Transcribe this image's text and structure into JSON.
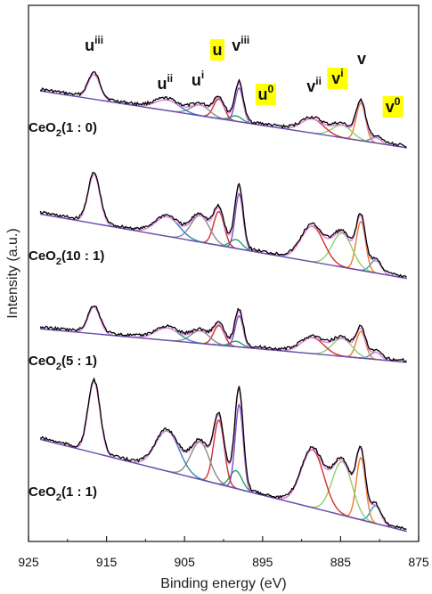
{
  "chart_data": {
    "type": "line",
    "xlabel": "Binding energy (eV)",
    "ylabel": "Intensity (a.u.)",
    "xlim": [
      925,
      875
    ],
    "x_ticks": [
      "925",
      "915",
      "905",
      "895",
      "885",
      "875"
    ],
    "x_tick_values": [
      925,
      915,
      905,
      895,
      885,
      875
    ],
    "yticks_shown": false,
    "colors": {
      "experimental": "#000000",
      "envelope": "#e58de0",
      "background": "#6a4fb0",
      "highlight": "#ffff00"
    },
    "components": [
      {
        "name": "v0",
        "color": "#1f9fd9",
        "center": 880.5,
        "fwhm": 1.6
      },
      {
        "name": "v",
        "color": "#f07c2e",
        "center": 882.4,
        "fwhm": 1.4
      },
      {
        "name": "vi",
        "color": "#8cd16a",
        "center": 884.8,
        "fwhm": 3.0
      },
      {
        "name": "vii",
        "color": "#d42e2e",
        "center": 888.6,
        "fwhm": 3.4
      },
      {
        "name": "u0",
        "color": "#1fa36a",
        "center": 898.4,
        "fwhm": 1.8
      },
      {
        "name": "viii",
        "color": "#7a4fc4",
        "center": 898.0,
        "fwhm": 1.2
      },
      {
        "name": "u",
        "color": "#d42e2e",
        "center": 900.6,
        "fwhm": 1.6
      },
      {
        "name": "ui",
        "color": "#8a8a8a",
        "center": 903.0,
        "fwhm": 2.8
      },
      {
        "name": "uii",
        "color": "#2e86c1",
        "center": 907.2,
        "fwhm": 3.6
      },
      {
        "name": "uiii",
        "color": "#f2a8ee",
        "center": 916.6,
        "fwhm": 1.8
      }
    ],
    "series": [
      {
        "name": "CeO2(1 : 0)",
        "label_main": "CeO",
        "label_sub": "2",
        "label_rest": "(1 : 0)",
        "baseline": [
          160,
          120
        ],
        "amplitudes": {
          "v0": 6,
          "v": 42,
          "vi": 14,
          "vii": 16,
          "u0": 6,
          "viii": 38,
          "u": 22,
          "ui": 12,
          "uii": 12,
          "uiii": 28
        }
      },
      {
        "name": "CeO2(10 : 1)",
        "label_main": "CeO",
        "label_sub": "2",
        "label_rest": "(10 : 1)",
        "baseline": [
          240,
          170
        ],
        "amplitudes": {
          "v0": 14,
          "v": 55,
          "vi": 38,
          "vii": 40,
          "u0": 10,
          "viii": 62,
          "u": 38,
          "ui": 30,
          "uii": 22,
          "uiii": 55
        }
      },
      {
        "name": "CeO2(5 : 1)",
        "label_main": "CeO",
        "label_sub": "2",
        "label_rest": "(5 : 1)",
        "baseline": [
          260,
          210
        ],
        "amplitudes": {
          "v0": 8,
          "v": 30,
          "vi": 20,
          "vii": 18,
          "u0": 6,
          "viii": 35,
          "u": 22,
          "ui": 14,
          "uii": 14,
          "uiii": 30
        }
      },
      {
        "name": "CeO2(1 : 1)",
        "label_main": "CeO",
        "label_sub": "2",
        "label_rest": "(1 : 1)",
        "baseline": [
          200,
          115
        ],
        "amplitudes": {
          "v0": 20,
          "v": 70,
          "vi": 60,
          "vii": 65,
          "u0": 20,
          "viii": 95,
          "u": 72,
          "ui": 42,
          "uii": 45,
          "uiii": 80
        }
      }
    ],
    "peak_labels": [
      {
        "main": "u",
        "sup": "iii",
        "x": 916.6,
        "highlight": false
      },
      {
        "main": "u",
        "sup": "ii",
        "x": 907.5,
        "highlight": false
      },
      {
        "main": "u",
        "sup": "i",
        "x": 903.3,
        "highlight": false
      },
      {
        "main": "u",
        "sup": "",
        "x": 900.8,
        "highlight": true
      },
      {
        "main": "v",
        "sup": "iii",
        "x": 897.8,
        "highlight": false
      },
      {
        "main": "u",
        "sup": "0",
        "x": 894.6,
        "highlight": true
      },
      {
        "main": "v",
        "sup": "ii",
        "x": 888.4,
        "highlight": false
      },
      {
        "main": "v",
        "sup": "i",
        "x": 885.4,
        "highlight": true
      },
      {
        "main": "v",
        "sup": "",
        "x": 882.3,
        "highlight": false
      },
      {
        "main": "v",
        "sup": "0",
        "x": 878.3,
        "highlight": true
      }
    ]
  }
}
